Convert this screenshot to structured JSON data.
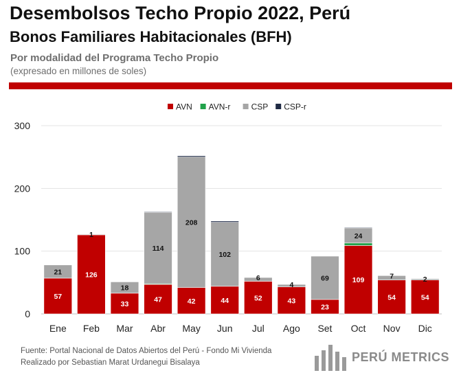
{
  "header": {
    "title": "Desembolsos Techo Propio 2022, Perú",
    "subtitle": "Bonos Familiares Habitacionales (BFH)",
    "description": "Por modalidad del Programa Techo Propio",
    "unit_note": "(expresado en millones de soles)"
  },
  "chart_data": {
    "type": "bar",
    "stacked": true,
    "categories": [
      "Ene",
      "Feb",
      "Mar",
      "Abr",
      "May",
      "Jun",
      "Jul",
      "Ago",
      "Set",
      "Oct",
      "Nov",
      "Dic"
    ],
    "series": [
      {
        "name": "AVN",
        "color": "#c00000",
        "values": [
          57,
          126,
          33,
          47,
          42,
          44,
          52,
          43,
          23,
          109,
          54,
          54
        ]
      },
      {
        "name": "AVN-r",
        "color": "#21a24a",
        "values": [
          0,
          0,
          0,
          1,
          0,
          0,
          0,
          0,
          0,
          4,
          0,
          0
        ]
      },
      {
        "name": "CSP",
        "color": "#a6a6a6",
        "values": [
          21,
          1,
          18,
          114,
          208,
          102,
          6,
          4,
          69,
          24,
          7,
          2
        ]
      },
      {
        "name": "CSP-r",
        "color": "#1f2a44",
        "values": [
          0,
          0,
          0,
          1,
          2,
          2,
          0,
          0,
          0,
          1,
          0,
          0
        ]
      }
    ],
    "data_labels": {
      "AVN": [
        "57",
        "126",
        "33",
        "47",
        "42",
        "44",
        "52",
        "43",
        "23",
        "109",
        "54",
        "54"
      ],
      "CSP": [
        "21",
        "1",
        "18",
        "114",
        "208",
        "102",
        "6",
        "4",
        "69",
        "24",
        "7",
        "2"
      ]
    },
    "ylim": [
      0,
      300
    ],
    "yticks": [
      0,
      100,
      200,
      300
    ],
    "grid": true,
    "legend_position": "top-center",
    "xlabel": "",
    "ylabel": ""
  },
  "footer": {
    "source": "Fuente: Portal Nacional de Datos Abiertos del Perú - Fondo Mi Vivienda",
    "author": "Realizado por Sebastian Marat Urdanegui Bisalaya"
  },
  "brand": {
    "name": "PERÚ METRICS",
    "logo_icon": "bar-chart-logo-icon"
  }
}
